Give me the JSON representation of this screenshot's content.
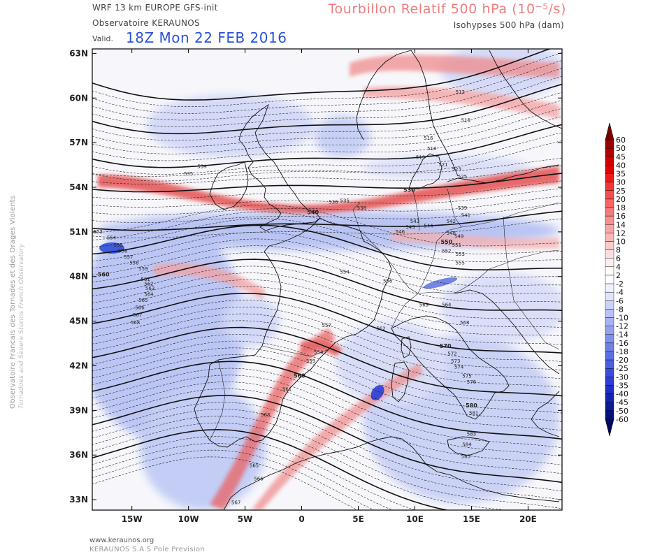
{
  "header": {
    "model": "WRF 13 km EUROPE   GFS-init",
    "observatory": "Observatoire KERAUNOS",
    "valid_label": "Valid.",
    "valid_date": "18Z Mon 22 FEB 2016",
    "field_title": "Tourbillon Relatif 500 hPa (10⁻⁵/s)",
    "field_subtitle": "Isohypses 500 hPa (dam)"
  },
  "side_text": {
    "line1": "Observatoire Francais des Tornades et des Orages Violents",
    "line2": "Tornadoes and Severe Storms French Observatory"
  },
  "footer": {
    "website": "www.keraunos.org",
    "company": "KERAUNOS S.A.S Pole Prevision"
  },
  "map": {
    "lat_labels": [
      "63N",
      "60N",
      "57N",
      "54N",
      "51N",
      "48N",
      "45N",
      "42N",
      "39N",
      "36N",
      "33N"
    ],
    "lat_values": [
      63,
      60,
      57,
      54,
      51,
      48,
      45,
      42,
      39,
      36,
      33
    ],
    "lon_labels": [
      "15W",
      "10W",
      "5W",
      "0",
      "5E",
      "10E",
      "15E",
      "20E"
    ],
    "lon_values": [
      -15,
      -10,
      -5,
      0,
      5,
      10,
      15,
      20
    ],
    "extent": {
      "lon_min": -18.5,
      "lon_max": 23,
      "lat_min": 32.3,
      "lat_max": 63.3
    },
    "colors": {
      "positive": "#e23b3b",
      "negative": "#2f4fd8",
      "land": "#f4f1ee",
      "sea": "#f8f8fb"
    },
    "contour_labels": [
      {
        "text": "512",
        "lon": 14,
        "lat": 60.3
      },
      {
        "text": "515",
        "lon": 14.5,
        "lat": 58.4
      },
      {
        "text": "516",
        "lon": 11.2,
        "lat": 57.2
      },
      {
        "text": "518",
        "lon": 11.5,
        "lat": 56.5
      },
      {
        "text": "519",
        "lon": 10.5,
        "lat": 55.9
      },
      {
        "text": "521",
        "lon": 12.5,
        "lat": 55.4
      },
      {
        "text": "523",
        "lon": 13.7,
        "lat": 55.1
      },
      {
        "text": "525",
        "lon": 14.2,
        "lat": 54.6
      },
      {
        "text": "530",
        "lon": 9.5,
        "lat": 53.7
      },
      {
        "text": "534",
        "lon": -8.8,
        "lat": 55.3
      },
      {
        "text": "535",
        "lon": -10,
        "lat": 54.8
      },
      {
        "text": "535",
        "lon": 3.8,
        "lat": 53.0
      },
      {
        "text": "536",
        "lon": 2.8,
        "lat": 52.9
      },
      {
        "text": "538",
        "lon": 5.3,
        "lat": 52.5
      },
      {
        "text": "539",
        "lon": 14.2,
        "lat": 52.5
      },
      {
        "text": "540",
        "lon": 1.0,
        "lat": 52.2
      },
      {
        "text": "541",
        "lon": 14.5,
        "lat": 52.0
      },
      {
        "text": "542",
        "lon": 13.2,
        "lat": 51.6
      },
      {
        "text": "543",
        "lon": 10.0,
        "lat": 51.6
      },
      {
        "text": "544",
        "lon": 11.2,
        "lat": 51.3
      },
      {
        "text": "545",
        "lon": 9.6,
        "lat": 51.2
      },
      {
        "text": "546",
        "lon": 8.7,
        "lat": 50.9
      },
      {
        "text": "548",
        "lon": 13.2,
        "lat": 50.8
      },
      {
        "text": "549",
        "lon": 13.9,
        "lat": 50.6
      },
      {
        "text": "550",
        "lon": 12.8,
        "lat": 50.2
      },
      {
        "text": "551",
        "lon": 13.7,
        "lat": 50.0
      },
      {
        "text": "552",
        "lon": 12.8,
        "lat": 49.6
      },
      {
        "text": "553",
        "lon": 14.0,
        "lat": 49.4
      },
      {
        "text": "555",
        "lon": 14.0,
        "lat": 48.8
      },
      {
        "text": "553",
        "lon": -18.0,
        "lat": 50.9
      },
      {
        "text": "554",
        "lon": -16.8,
        "lat": 50.5
      },
      {
        "text": "555",
        "lon": -16.2,
        "lat": 50.0
      },
      {
        "text": "556",
        "lon": -15.8,
        "lat": 49.6
      },
      {
        "text": "557",
        "lon": -15.3,
        "lat": 49.2
      },
      {
        "text": "558",
        "lon": -14.8,
        "lat": 48.8
      },
      {
        "text": "559",
        "lon": -14.0,
        "lat": 48.4
      },
      {
        "text": "560",
        "lon": -17.5,
        "lat": 48.0
      },
      {
        "text": "554",
        "lon": 3.8,
        "lat": 48.2
      },
      {
        "text": "556",
        "lon": 7.6,
        "lat": 47.6
      },
      {
        "text": "561",
        "lon": -13.8,
        "lat": 47.7
      },
      {
        "text": "562",
        "lon": -13.5,
        "lat": 47.4
      },
      {
        "text": "563",
        "lon": -13.4,
        "lat": 47.1
      },
      {
        "text": "564",
        "lon": -13.5,
        "lat": 46.7
      },
      {
        "text": "565",
        "lon": -14.0,
        "lat": 46.3
      },
      {
        "text": "566",
        "lon": -14.3,
        "lat": 45.8
      },
      {
        "text": "567",
        "lon": -14.5,
        "lat": 45.3
      },
      {
        "text": "568",
        "lon": -14.7,
        "lat": 44.8
      },
      {
        "text": "557",
        "lon": 2.2,
        "lat": 44.6
      },
      {
        "text": "562",
        "lon": 7.0,
        "lat": 44.4
      },
      {
        "text": "563",
        "lon": 10.8,
        "lat": 46.0
      },
      {
        "text": "564",
        "lon": 12.8,
        "lat": 46.0
      },
      {
        "text": "568",
        "lon": 14.4,
        "lat": 44.8
      },
      {
        "text": "558",
        "lon": 1.5,
        "lat": 42.8
      },
      {
        "text": "559",
        "lon": 0.8,
        "lat": 42.2
      },
      {
        "text": "560",
        "lon": -0.2,
        "lat": 41.2
      },
      {
        "text": "561",
        "lon": -1.3,
        "lat": 40.3
      },
      {
        "text": "570",
        "lon": 12.7,
        "lat": 43.2
      },
      {
        "text": "572",
        "lon": 13.3,
        "lat": 42.7
      },
      {
        "text": "573",
        "lon": 13.6,
        "lat": 42.2
      },
      {
        "text": "574",
        "lon": 13.9,
        "lat": 41.8
      },
      {
        "text": "575",
        "lon": 14.6,
        "lat": 41.2
      },
      {
        "text": "576",
        "lon": 15.0,
        "lat": 40.8
      },
      {
        "text": "563",
        "lon": -3.2,
        "lat": 38.6
      },
      {
        "text": "580",
        "lon": 15.0,
        "lat": 39.2
      },
      {
        "text": "581",
        "lon": 15.2,
        "lat": 38.7
      },
      {
        "text": "583",
        "lon": 15.0,
        "lat": 37.3
      },
      {
        "text": "584",
        "lon": 14.6,
        "lat": 36.6
      },
      {
        "text": "585",
        "lon": 14.5,
        "lat": 35.8
      },
      {
        "text": "565",
        "lon": -4.2,
        "lat": 35.2
      },
      {
        "text": "566",
        "lon": -3.8,
        "lat": 34.3
      },
      {
        "text": "567",
        "lon": -5.8,
        "lat": 32.7
      }
    ]
  },
  "colorbar": {
    "values": [
      "60",
      "50",
      "45",
      "40",
      "35",
      "30",
      "25",
      "20",
      "18",
      "16",
      "14",
      "12",
      "10",
      "8",
      "6",
      "4",
      "2",
      "-2",
      "-4",
      "-6",
      "-8",
      "-10",
      "-12",
      "-14",
      "-16",
      "-18",
      "-20",
      "-25",
      "-30",
      "-35",
      "-40",
      "-45",
      "-50",
      "-60"
    ],
    "colors": [
      "#7a0000",
      "#9b0000",
      "#b50000",
      "#cc0000",
      "#e00000",
      "#ee1a1a",
      "#f23535",
      "#f44f4f",
      "#f56565",
      "#f67a7a",
      "#f78f8f",
      "#f8a4a4",
      "#f9b8b8",
      "#fbcccc",
      "#fcdede",
      "#fdeeee",
      "#ffffff",
      "#ffffff",
      "#eef0fd",
      "#dfe3fb",
      "#ccd3f9",
      "#b9c2f6",
      "#a7b2f3",
      "#94a2f0",
      "#8191ec",
      "#6e80e8",
      "#5b6fe4",
      "#4a5ee0",
      "#3a4ddc",
      "#2c3ed4",
      "#2030c4",
      "#1524b0",
      "#0c1a98",
      "#061080",
      "#020a60"
    ]
  }
}
